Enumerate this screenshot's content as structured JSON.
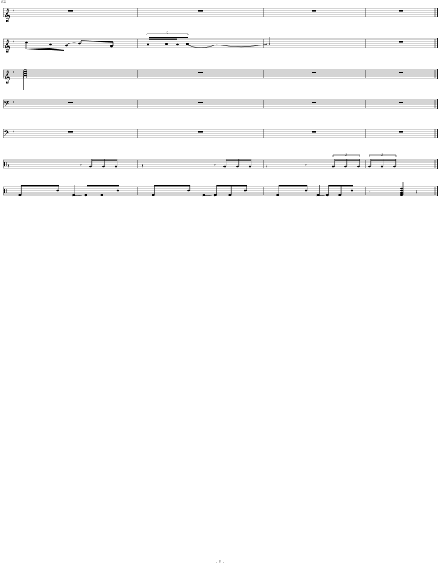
{
  "page": {
    "measure_number": "82",
    "page_number": "- 6 -"
  },
  "staves": [
    {
      "clef": "treble",
      "time": "4/4",
      "content": [
        "rest",
        "rest",
        "rest",
        "rest"
      ]
    },
    {
      "clef": "treble",
      "time": "4/4",
      "content": [
        "notes",
        "notes-triplet",
        "tied",
        "rest"
      ],
      "tuplet_label": "3"
    },
    {
      "clef": "treble",
      "time": "4/4",
      "content": [
        "chord",
        "rest",
        "rest",
        "rest"
      ]
    },
    {
      "clef": "bass",
      "time": "4/4",
      "content": [
        "rest",
        "rest",
        "rest",
        "rest"
      ]
    },
    {
      "clef": "bass",
      "time": "4/4",
      "content": [
        "rest",
        "rest",
        "rest",
        "rest"
      ]
    },
    {
      "clef": "percussion",
      "time": "",
      "content": [
        "groove",
        "groove",
        "groove-triplet",
        "triplet"
      ],
      "tuplet_label": "3"
    },
    {
      "clef": "percussion",
      "time": "",
      "content": [
        "beat",
        "beat",
        "beat",
        "fill"
      ]
    }
  ],
  "colors": {
    "ink": "#000000",
    "staff_line": "#555555"
  }
}
